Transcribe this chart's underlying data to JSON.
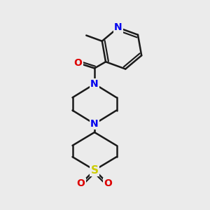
{
  "bg_color": "#ebebeb",
  "bond_color": "#1a1a1a",
  "N_color": "#0000ee",
  "O_color": "#dd0000",
  "S_color": "#cccc00",
  "line_width": 1.8,
  "figsize": [
    3.0,
    3.0
  ],
  "dpi": 100,
  "xlim": [
    0,
    10
  ],
  "ylim": [
    0,
    10
  ]
}
